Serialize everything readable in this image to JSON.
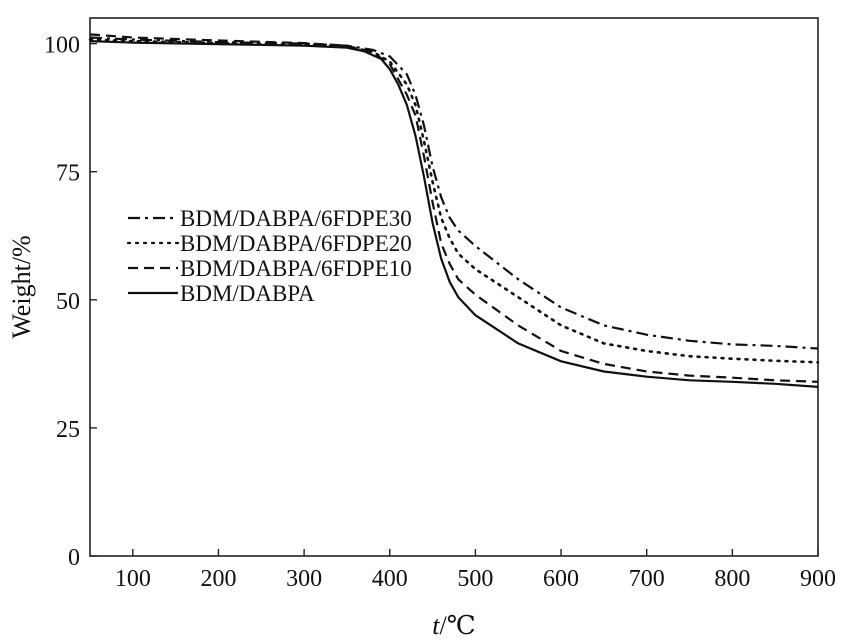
{
  "chart_data": {
    "type": "line",
    "title": "",
    "xlabel_var": "t",
    "xlabel_unit": "/℃",
    "ylabel": "Weight/%",
    "xlim": [
      50,
      900
    ],
    "ylim": [
      0,
      105
    ],
    "x_ticks": [
      100,
      200,
      300,
      400,
      500,
      600,
      700,
      800,
      900
    ],
    "y_ticks": [
      0,
      25,
      50,
      75,
      100
    ],
    "grid": false,
    "legend_position": "center-left",
    "series": [
      {
        "name": "BDM/DABPA/6FDPE30",
        "dash": "dashdot",
        "points": [
          [
            50,
            101.2
          ],
          [
            100,
            100.8
          ],
          [
            200,
            100.3
          ],
          [
            300,
            100.0
          ],
          [
            350,
            99.6
          ],
          [
            380,
            98.8
          ],
          [
            400,
            97.5
          ],
          [
            420,
            94
          ],
          [
            430,
            90
          ],
          [
            440,
            84
          ],
          [
            450,
            76
          ],
          [
            460,
            70
          ],
          [
            470,
            66
          ],
          [
            480,
            63.5
          ],
          [
            500,
            60.5
          ],
          [
            550,
            54
          ],
          [
            600,
            48.5
          ],
          [
            650,
            45
          ],
          [
            700,
            43.2
          ],
          [
            750,
            42
          ],
          [
            800,
            41.3
          ],
          [
            850,
            41
          ],
          [
            900,
            40.5
          ]
        ]
      },
      {
        "name": "BDM/DABPA/6FDPE20",
        "dash": "dotted",
        "points": [
          [
            50,
            100.8
          ],
          [
            100,
            100.5
          ],
          [
            200,
            100.1
          ],
          [
            300,
            99.8
          ],
          [
            350,
            99.4
          ],
          [
            380,
            98.4
          ],
          [
            400,
            96.5
          ],
          [
            420,
            92
          ],
          [
            430,
            88
          ],
          [
            440,
            81
          ],
          [
            450,
            73
          ],
          [
            460,
            66
          ],
          [
            470,
            62
          ],
          [
            480,
            59
          ],
          [
            500,
            56
          ],
          [
            550,
            50.5
          ],
          [
            600,
            45
          ],
          [
            650,
            41.5
          ],
          [
            700,
            40
          ],
          [
            750,
            39
          ],
          [
            800,
            38.5
          ],
          [
            850,
            38.1
          ],
          [
            900,
            37.8
          ]
        ]
      },
      {
        "name": "BDM/DABPA/6FDPE10",
        "dash": "dashed",
        "points": [
          [
            50,
            101.8
          ],
          [
            100,
            101.2
          ],
          [
            200,
            100.6
          ],
          [
            300,
            100.1
          ],
          [
            350,
            99.6
          ],
          [
            380,
            98.3
          ],
          [
            400,
            96
          ],
          [
            420,
            90
          ],
          [
            430,
            86
          ],
          [
            440,
            78
          ],
          [
            450,
            69
          ],
          [
            460,
            61
          ],
          [
            470,
            57
          ],
          [
            480,
            54
          ],
          [
            500,
            51
          ],
          [
            550,
            45
          ],
          [
            600,
            40
          ],
          [
            650,
            37.5
          ],
          [
            700,
            36
          ],
          [
            750,
            35.2
          ],
          [
            800,
            34.8
          ],
          [
            850,
            34.3
          ],
          [
            900,
            34
          ]
        ]
      },
      {
        "name": "BDM/DABPA",
        "dash": "solid",
        "points": [
          [
            50,
            100.5
          ],
          [
            100,
            100.2
          ],
          [
            200,
            99.9
          ],
          [
            300,
            99.6
          ],
          [
            350,
            99.2
          ],
          [
            370,
            98.5
          ],
          [
            390,
            97
          ],
          [
            400,
            95
          ],
          [
            410,
            92
          ],
          [
            420,
            88
          ],
          [
            430,
            82
          ],
          [
            440,
            74
          ],
          [
            450,
            65
          ],
          [
            460,
            58
          ],
          [
            470,
            53.5
          ],
          [
            480,
            50.5
          ],
          [
            500,
            47
          ],
          [
            550,
            41.5
          ],
          [
            600,
            38
          ],
          [
            650,
            36
          ],
          [
            700,
            35
          ],
          [
            750,
            34.3
          ],
          [
            800,
            34
          ],
          [
            850,
            33.6
          ],
          [
            900,
            33
          ]
        ]
      }
    ]
  }
}
